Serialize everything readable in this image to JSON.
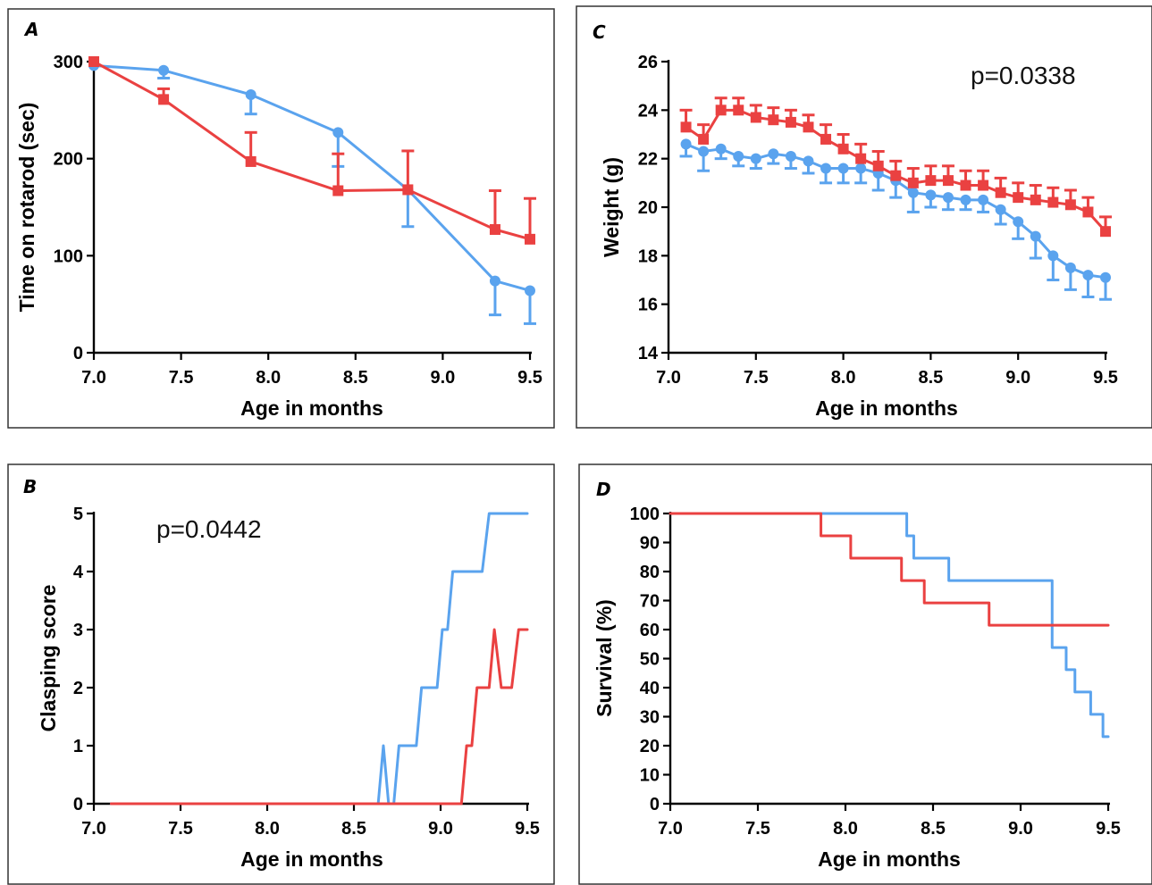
{
  "colors": {
    "blue": "#5aa3ee",
    "red": "#ea4141"
  },
  "chart_data": [
    {
      "panel": "A",
      "type": "line",
      "xlabel": "Age in months",
      "ylabel": "Time on rotarod (sec)",
      "xlim": [
        7.0,
        9.5
      ],
      "ylim": [
        0,
        300
      ],
      "xticks": [
        "7.0",
        "7.5",
        "8.0",
        "8.5",
        "9.0",
        "9.5"
      ],
      "yticks": [
        "0",
        "100",
        "200",
        "300"
      ],
      "annotation": "",
      "series": [
        {
          "color": "#5aa3ee",
          "marker": "circle",
          "x": [
            7.0,
            7.4,
            7.9,
            8.4,
            8.8,
            9.3,
            9.5
          ],
          "y": [
            296,
            291,
            266,
            227,
            168,
            74,
            64
          ],
          "err": [
            0,
            8,
            20,
            35,
            38,
            35,
            34
          ]
        },
        {
          "color": "#ea4141",
          "marker": "square",
          "x": [
            7.0,
            7.4,
            7.9,
            8.4,
            8.8,
            9.3,
            9.5
          ],
          "y": [
            300,
            261,
            197,
            167,
            168,
            127,
            117
          ],
          "err": [
            0,
            11,
            30,
            38,
            40,
            40,
            42
          ]
        }
      ]
    },
    {
      "panel": "C",
      "type": "line",
      "xlabel": "Age in months",
      "ylabel": "Weight (g)",
      "xlim": [
        7.0,
        9.5
      ],
      "ylim": [
        14,
        26
      ],
      "xticks": [
        "7.0",
        "7.5",
        "8.0",
        "8.5",
        "9.0",
        "9.5"
      ],
      "yticks": [
        "14",
        "16",
        "18",
        "20",
        "22",
        "24",
        "26"
      ],
      "annotation": "p=0.0338",
      "series": [
        {
          "color": "#5aa3ee",
          "marker": "circle",
          "x": [
            7.1,
            7.2,
            7.3,
            7.4,
            7.5,
            7.6,
            7.7,
            7.8,
            7.9,
            8.0,
            8.1,
            8.2,
            8.3,
            8.4,
            8.5,
            8.6,
            8.7,
            8.8,
            8.9,
            9.0,
            9.1,
            9.2,
            9.3,
            9.4,
            9.5
          ],
          "y": [
            22.6,
            22.3,
            22.4,
            22.1,
            22.0,
            22.2,
            22.1,
            21.9,
            21.6,
            21.6,
            21.6,
            21.4,
            21.1,
            20.6,
            20.5,
            20.4,
            20.3,
            20.3,
            19.9,
            19.4,
            18.8,
            18.0,
            17.5,
            17.2,
            17.1
          ],
          "err": [
            0.5,
            0.8,
            0.4,
            0.4,
            0.4,
            0.4,
            0.5,
            0.5,
            0.6,
            0.6,
            0.6,
            0.7,
            0.7,
            0.8,
            0.5,
            0.5,
            0.4,
            0.5,
            0.6,
            0.7,
            0.9,
            1.0,
            0.9,
            0.9,
            0.9
          ]
        },
        {
          "color": "#ea4141",
          "marker": "square",
          "x": [
            7.1,
            7.2,
            7.3,
            7.4,
            7.5,
            7.6,
            7.7,
            7.8,
            7.9,
            8.0,
            8.1,
            8.2,
            8.3,
            8.4,
            8.5,
            8.6,
            8.7,
            8.8,
            8.9,
            9.0,
            9.1,
            9.2,
            9.3,
            9.4,
            9.5
          ],
          "y": [
            23.3,
            22.8,
            24.0,
            24.0,
            23.7,
            23.6,
            23.5,
            23.3,
            22.8,
            22.4,
            22.0,
            21.7,
            21.3,
            21.0,
            21.1,
            21.1,
            20.9,
            20.9,
            20.6,
            20.4,
            20.3,
            20.2,
            20.1,
            19.8,
            19.0
          ],
          "err": [
            0.7,
            0.6,
            0.5,
            0.5,
            0.5,
            0.5,
            0.5,
            0.5,
            0.6,
            0.6,
            0.6,
            0.6,
            0.6,
            0.6,
            0.6,
            0.6,
            0.6,
            0.6,
            0.6,
            0.6,
            0.6,
            0.6,
            0.6,
            0.6,
            0.6
          ]
        }
      ]
    },
    {
      "panel": "B",
      "type": "line",
      "xlabel": "Age in months",
      "ylabel": "Clasping score",
      "xlim": [
        7.0,
        9.5
      ],
      "ylim": [
        0,
        5
      ],
      "xticks": [
        "7.0",
        "7.5",
        "8.0",
        "8.5",
        "9.0",
        "9.5"
      ],
      "yticks": [
        "0",
        "1",
        "2",
        "3",
        "4",
        "5"
      ],
      "annotation": "p=0.0442",
      "series": [
        {
          "color": "#5aa3ee",
          "x": [
            7.1,
            8.64,
            8.67,
            8.7,
            8.73,
            8.76,
            8.8,
            8.83,
            8.86,
            8.89,
            8.98,
            9.01,
            9.04,
            9.07,
            9.09,
            9.12,
            9.24,
            9.28,
            9.31,
            9.5
          ],
          "y": [
            0,
            0,
            1,
            0,
            0,
            1,
            1,
            1,
            1,
            2,
            2,
            3,
            3,
            4,
            4,
            4,
            4,
            5,
            5,
            5
          ]
        },
        {
          "color": "#ea4141",
          "x": [
            7.1,
            9.12,
            9.15,
            9.18,
            9.21,
            9.24,
            9.28,
            9.31,
            9.35,
            9.41,
            9.45,
            9.5
          ],
          "y": [
            0,
            0,
            1,
            1,
            2,
            2,
            2,
            3,
            2,
            2,
            3,
            3
          ]
        }
      ]
    },
    {
      "panel": "D",
      "type": "line",
      "xlabel": "Age in months",
      "ylabel": "Survival (%)",
      "xlim": [
        7.0,
        9.5
      ],
      "ylim": [
        0,
        100
      ],
      "xticks": [
        "7.0",
        "7.5",
        "8.0",
        "8.5",
        "9.0",
        "9.5"
      ],
      "yticks": [
        "0",
        "10",
        "20",
        "30",
        "40",
        "50",
        "60",
        "70",
        "80",
        "90",
        "100"
      ],
      "annotation": "",
      "series": [
        {
          "color": "#5aa3ee",
          "step": true,
          "x": [
            7.0,
            8.35,
            8.37,
            8.39,
            8.59,
            9.18,
            9.26,
            9.31,
            9.4,
            9.47,
            9.5
          ],
          "y": [
            100,
            92.3,
            92.3,
            84.6,
            76.9,
            53.8,
            46.2,
            38.5,
            30.8,
            23.1,
            23.1
          ]
        },
        {
          "color": "#ea4141",
          "step": true,
          "x": [
            7.0,
            7.86,
            8.03,
            8.32,
            8.45,
            8.82,
            9.5
          ],
          "y": [
            100,
            92.3,
            84.6,
            76.9,
            69.2,
            61.5,
            61.5
          ]
        }
      ]
    }
  ]
}
